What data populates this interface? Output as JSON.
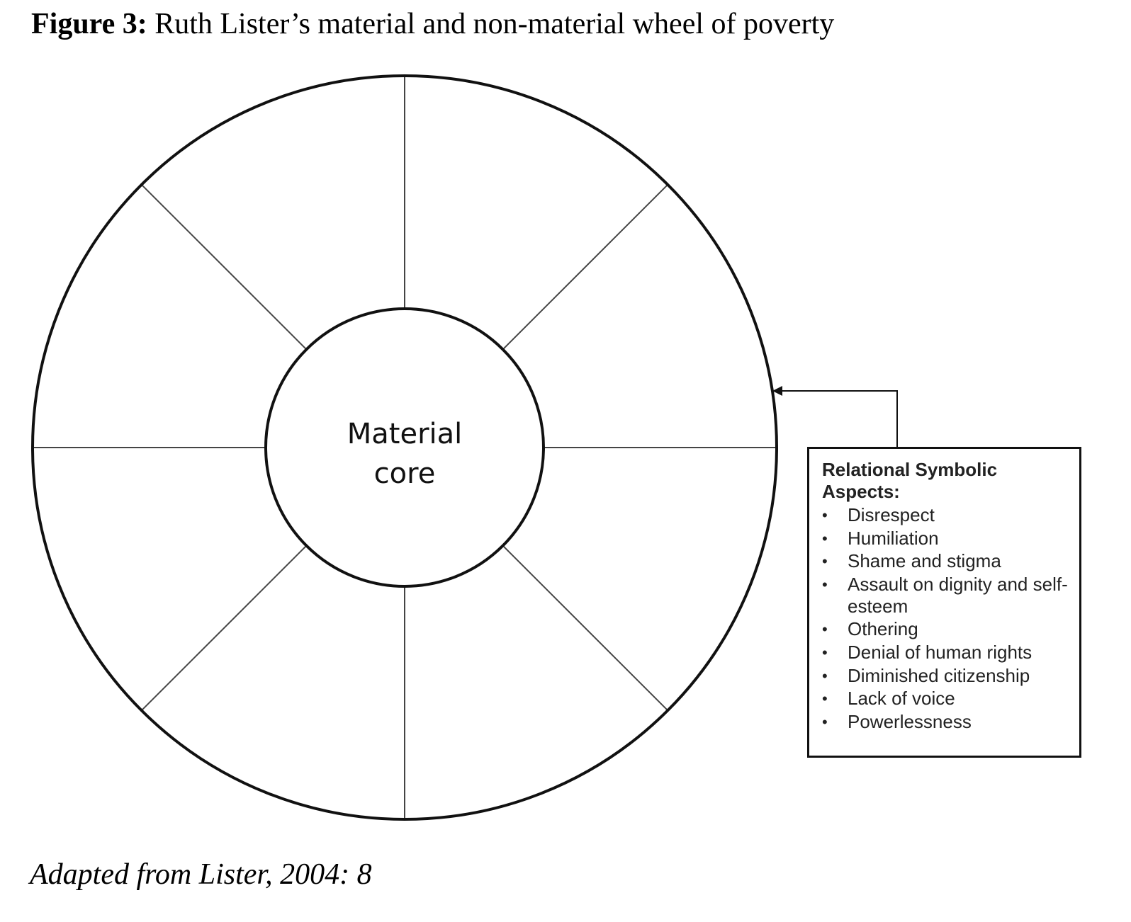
{
  "figure": {
    "label": "Figure 3:",
    "title": "Ruth Lister’s material and non-material wheel of poverty"
  },
  "wheel": {
    "core_label_line1": "Material",
    "core_label_line2": "core",
    "segment_count": 8,
    "line_color": "#111111",
    "spoke_color": "#444444"
  },
  "aspects_box": {
    "heading": "Relational Symbolic Aspects:",
    "items": [
      "Disrespect",
      "Humiliation",
      "Shame and stigma",
      "Assault on dignity and self-esteem",
      "Othering",
      "Denial of human rights",
      "Diminished citizenship",
      "Lack of voice",
      "Powerlessness"
    ],
    "bullet": "•"
  },
  "footer": {
    "source": "Adapted from Lister, 2004: 8"
  }
}
